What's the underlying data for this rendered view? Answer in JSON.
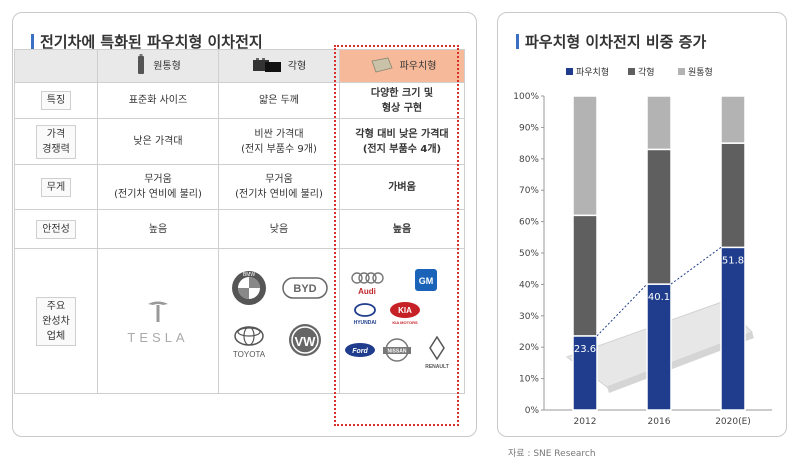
{
  "left_panel": {
    "title": "전기차에 특화된 파우치형 이차전지",
    "columns": [
      "원통형",
      "각형",
      "파우치형"
    ],
    "rows": [
      {
        "label": "특징",
        "values": [
          "표준화 사이즈",
          "얇은 두께",
          "다양한 크기 및\n형상 구현"
        ]
      },
      {
        "label": "가격\n경쟁력",
        "values": [
          "낮은 가격대",
          "비싼 가격대\n(전지 부품수 9개)",
          "각형 대비 낮은 가격대\n(전지 부품수 4개)"
        ]
      },
      {
        "label": "무게",
        "values": [
          "무거움\n(전기차 연비에 불리)",
          "무거움\n(전기차 연비에 불리)",
          "가벼움"
        ]
      },
      {
        "label": "안전성",
        "values": [
          "높음",
          "낮음",
          "높음"
        ]
      },
      {
        "label": "주요\n완성차\n업체",
        "values": [
          "",
          "",
          ""
        ]
      }
    ],
    "logos": {
      "cylindrical": [
        "TESLA"
      ],
      "prismatic": [
        "BMW",
        "BYD",
        "TOYOTA",
        "VW"
      ],
      "pouch": [
        "Audi",
        "GM",
        "HYUNDAI",
        "KIA",
        "KIA MOTORS",
        "Ford",
        "NISSAN",
        "RENAULT"
      ]
    },
    "colors": {
      "pouch_header": "#f6b99a",
      "highlight_border": "#d8302b"
    }
  },
  "right_panel": {
    "title": "파우치형 이차전지 비중 증가"
  },
  "chart_data": {
    "type": "bar",
    "stacked": true,
    "categories": [
      "2012",
      "2016",
      "2020(E)"
    ],
    "series": [
      {
        "name": "파우치형",
        "values": [
          23.6,
          40.1,
          51.8
        ],
        "color": "#1f3d8c"
      },
      {
        "name": "각형",
        "values": [
          38.4,
          42.9,
          33.2
        ],
        "color": "#5f5f5f"
      },
      {
        "name": "원통형",
        "values": [
          38.0,
          17.0,
          15.0
        ],
        "color": "#b3b3b3"
      }
    ],
    "data_labels": [
      "23.6",
      "40.1",
      "51.8"
    ],
    "y_ticks": [
      "0%",
      "10%",
      "20%",
      "30%",
      "40%",
      "50%",
      "60%",
      "70%",
      "80%",
      "90%",
      "100%"
    ],
    "ylim": [
      0,
      100
    ],
    "legend_position": "top",
    "trend_line": "dashed line connecting pouch-type tops"
  },
  "source": "자료 : SNE Research"
}
